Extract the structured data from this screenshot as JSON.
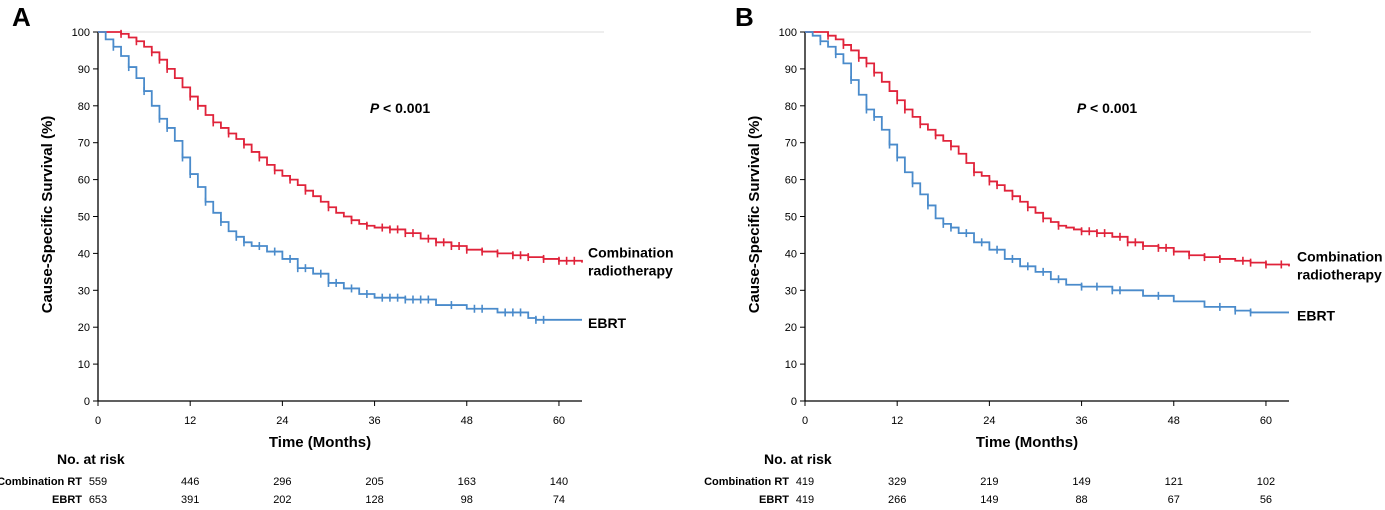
{
  "colors": {
    "combination": "#e0233a",
    "ebrt": "#4a8bcb",
    "axis": "#000000"
  },
  "chart_data": [
    {
      "type": "line",
      "panel_label": "A",
      "annotation": "< 0.001",
      "annotation_italic": "P",
      "xlabel": "Time (Months)",
      "ylabel": "Cause-Specific Survival (%)",
      "xlim": [
        0,
        63
      ],
      "ylim": [
        0,
        100
      ],
      "x_ticks": [
        0,
        12,
        24,
        36,
        48,
        60
      ],
      "y_ticks": [
        0,
        10,
        20,
        30,
        40,
        50,
        60,
        70,
        80,
        90,
        100
      ],
      "series": [
        {
          "name": "Combination radiotherapy",
          "label_lines": [
            "Combination",
            "radiotherapy"
          ],
          "color": "#e0233a",
          "x": [
            0,
            3,
            4,
            5,
            6,
            7,
            8,
            9,
            10,
            11,
            12,
            13,
            14,
            15,
            16,
            17,
            18,
            19,
            20,
            21,
            22,
            23,
            24,
            25,
            26,
            27,
            28,
            29,
            30,
            31,
            32,
            33,
            34,
            35,
            36,
            38,
            40,
            42,
            44,
            46,
            48,
            50,
            52,
            54,
            56,
            58,
            60,
            63
          ],
          "y": [
            100,
            99.5,
            98.5,
            97.5,
            96,
            94.5,
            92.5,
            90,
            87.5,
            85,
            82.5,
            80,
            77.5,
            75.5,
            74,
            72.5,
            71,
            69.5,
            67.5,
            66,
            64,
            62.5,
            61,
            60,
            58.5,
            57,
            55.5,
            54,
            52.5,
            51,
            50,
            49,
            48,
            47.5,
            47,
            46.5,
            45.5,
            44,
            43,
            42,
            41,
            40.5,
            40,
            39.5,
            39,
            38.5,
            38,
            37.5
          ],
          "censor_x": [
            3,
            5,
            7,
            8,
            9,
            12,
            13,
            15,
            17,
            19,
            21,
            23,
            25,
            27,
            30,
            33,
            35,
            37,
            38,
            39,
            40,
            41,
            43,
            44,
            45,
            46,
            47,
            48,
            50,
            52,
            54,
            55,
            56,
            58,
            60,
            61,
            62
          ]
        },
        {
          "name": "EBRT",
          "label_lines": [
            "EBRT"
          ],
          "color": "#4a8bcb",
          "x": [
            0,
            1,
            2,
            3,
            4,
            5,
            6,
            7,
            8,
            9,
            10,
            11,
            12,
            13,
            14,
            15,
            16,
            17,
            18,
            19,
            20,
            22,
            24,
            26,
            28,
            30,
            32,
            34,
            36,
            40,
            44,
            48,
            52,
            56,
            57,
            63
          ],
          "y": [
            100,
            98,
            96,
            93.5,
            90.5,
            87.5,
            84,
            80,
            76.5,
            74,
            70.5,
            66,
            61.5,
            58,
            54,
            51,
            48.5,
            46,
            44.5,
            43,
            42,
            40.5,
            38.5,
            36,
            34.5,
            32,
            30.5,
            29,
            28,
            27.5,
            26,
            25,
            24,
            22.5,
            22,
            22
          ],
          "censor_x": [
            2,
            4,
            6,
            8,
            9,
            11,
            12,
            14,
            16,
            18,
            19,
            21,
            23,
            25,
            26,
            27,
            29,
            30,
            31,
            33,
            35,
            37,
            38,
            39,
            40,
            41,
            42,
            43,
            46,
            49,
            50,
            53,
            54,
            55,
            57,
            58
          ]
        }
      ],
      "risk_table": {
        "title": "No. at risk",
        "rows": [
          {
            "label": "Combination RT",
            "values": [
              559,
              446,
              296,
              205,
              163,
              140
            ]
          },
          {
            "label": "EBRT",
            "values": [
              653,
              391,
              202,
              128,
              98,
              74
            ]
          }
        ]
      }
    },
    {
      "type": "line",
      "panel_label": "B",
      "annotation": "< 0.001",
      "annotation_italic": "P",
      "xlabel": "Time (Months)",
      "ylabel": "Cause-Specific Survival (%)",
      "xlim": [
        0,
        63
      ],
      "ylim": [
        0,
        100
      ],
      "x_ticks": [
        0,
        12,
        24,
        36,
        48,
        60
      ],
      "y_ticks": [
        0,
        10,
        20,
        30,
        40,
        50,
        60,
        70,
        80,
        90,
        100
      ],
      "series": [
        {
          "name": "Combination radiotherapy",
          "label_lines": [
            "Combination",
            "radiotherapy"
          ],
          "color": "#e0233a",
          "x": [
            0,
            3,
            4,
            5,
            6,
            7,
            8,
            9,
            10,
            11,
            12,
            13,
            14,
            15,
            16,
            17,
            18,
            19,
            20,
            21,
            22,
            23,
            24,
            25,
            26,
            27,
            28,
            29,
            30,
            31,
            32,
            33,
            34,
            35,
            36,
            38,
            40,
            42,
            44,
            46,
            48,
            50,
            52,
            54,
            56,
            58,
            60,
            63
          ],
          "y": [
            100,
            99,
            98,
            96.5,
            95,
            93,
            91.5,
            89,
            86.5,
            84,
            81.5,
            79,
            77,
            75,
            73.5,
            72,
            70.5,
            69,
            67,
            64.5,
            62,
            61,
            59.5,
            58.5,
            57,
            55.5,
            54,
            52.5,
            51,
            49.5,
            48.5,
            47.5,
            47,
            46.5,
            46,
            45.5,
            44.5,
            43,
            42,
            41.5,
            40.5,
            39.5,
            39,
            38.5,
            38,
            37.5,
            37,
            36.5
          ],
          "censor_x": [
            3,
            5,
            7,
            8,
            9,
            12,
            13,
            15,
            17,
            19,
            22,
            24,
            25,
            27,
            29,
            31,
            33,
            36,
            37,
            38,
            39,
            41,
            42,
            43,
            44,
            46,
            47,
            48,
            50,
            52,
            54,
            57,
            58,
            60,
            62
          ]
        },
        {
          "name": "EBRT",
          "label_lines": [
            "EBRT"
          ],
          "color": "#4a8bcb",
          "x": [
            0,
            1,
            2,
            3,
            4,
            5,
            6,
            7,
            8,
            9,
            10,
            11,
            12,
            13,
            14,
            15,
            16,
            17,
            18,
            19,
            20,
            22,
            24,
            26,
            28,
            30,
            32,
            34,
            36,
            40,
            44,
            48,
            52,
            56,
            58,
            63
          ],
          "y": [
            100,
            99,
            97.5,
            96,
            94,
            91.5,
            87,
            83,
            79,
            77,
            73.5,
            69.5,
            66,
            62,
            59,
            56,
            53,
            49.5,
            48,
            47,
            45.5,
            43,
            41,
            38.5,
            36.5,
            35,
            33,
            31.5,
            31,
            30,
            28.5,
            27,
            25.5,
            24.5,
            24,
            24
          ],
          "censor_x": [
            2,
            4,
            6,
            8,
            9,
            11,
            12,
            14,
            16,
            18,
            19,
            21,
            23,
            25,
            27,
            29,
            31,
            33,
            36,
            38,
            40,
            41,
            46,
            54,
            56,
            58
          ]
        }
      ],
      "risk_table": {
        "title": "No. at risk",
        "rows": [
          {
            "label": "Combination RT",
            "values": [
              419,
              329,
              219,
              149,
              121,
              102
            ]
          },
          {
            "label": "EBRT",
            "values": [
              419,
              266,
              149,
              88,
              67,
              56
            ]
          }
        ]
      }
    }
  ]
}
